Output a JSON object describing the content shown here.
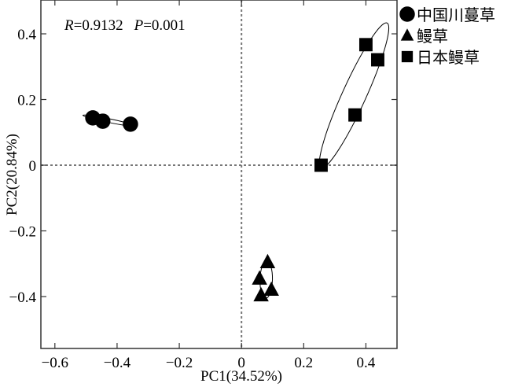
{
  "chart_data": {
    "type": "scatter",
    "title": "",
    "xlabel": "PC1(34.52%)",
    "ylabel": "PC2(20.84%)",
    "xlim": [
      -0.645,
      0.5
    ],
    "ylim": [
      -0.558,
      0.503
    ],
    "xticks": [
      -0.6,
      -0.4,
      -0.2,
      0,
      0.2,
      0.4
    ],
    "xtick_labels": [
      "−0.6",
      "−0.4",
      "−0.2",
      "0",
      "0.2",
      "0.4"
    ],
    "yticks": [
      -0.4,
      -0.2,
      0,
      0.2,
      0.4
    ],
    "ytick_labels": [
      "−0.4",
      "−0.2",
      "0",
      "0.2",
      "0.4"
    ],
    "reference_lines": {
      "x": 0,
      "y": 0
    },
    "annotation": {
      "r_label": "R",
      "r_value": "=0.9132",
      "p_label": "P",
      "p_value": "=0.001"
    },
    "legend_position": "outside-top-right",
    "series": [
      {
        "name": "中国川蔓草",
        "marker": "circle",
        "points": [
          [
            -0.478,
            0.144
          ],
          [
            -0.446,
            0.134
          ],
          [
            -0.357,
            0.125
          ]
        ],
        "ellipse": {
          "p1": [
            -0.51,
            0.152
          ],
          "p2": [
            -0.345,
            0.12
          ],
          "minor": 0.006
        }
      },
      {
        "name": "鳗草",
        "marker": "triangle",
        "points": [
          [
            0.084,
            -0.295
          ],
          [
            0.058,
            -0.345
          ],
          [
            0.096,
            -0.379
          ],
          [
            0.063,
            -0.396
          ]
        ],
        "ellipse": {
          "p1": [
            0.081,
            -0.292
          ],
          "p2": [
            0.078,
            -0.405
          ],
          "minor": 0.02
        }
      },
      {
        "name": "日本鳗草",
        "marker": "square",
        "points": [
          [
            0.4,
            0.367
          ],
          [
            0.438,
            0.321
          ],
          [
            0.365,
            0.153
          ],
          [
            0.256,
            0.0
          ]
        ],
        "ellipse": {
          "p1": [
            0.256,
            -0.008
          ],
          "p2": [
            0.468,
            0.433
          ],
          "minor": 0.038
        }
      }
    ]
  }
}
